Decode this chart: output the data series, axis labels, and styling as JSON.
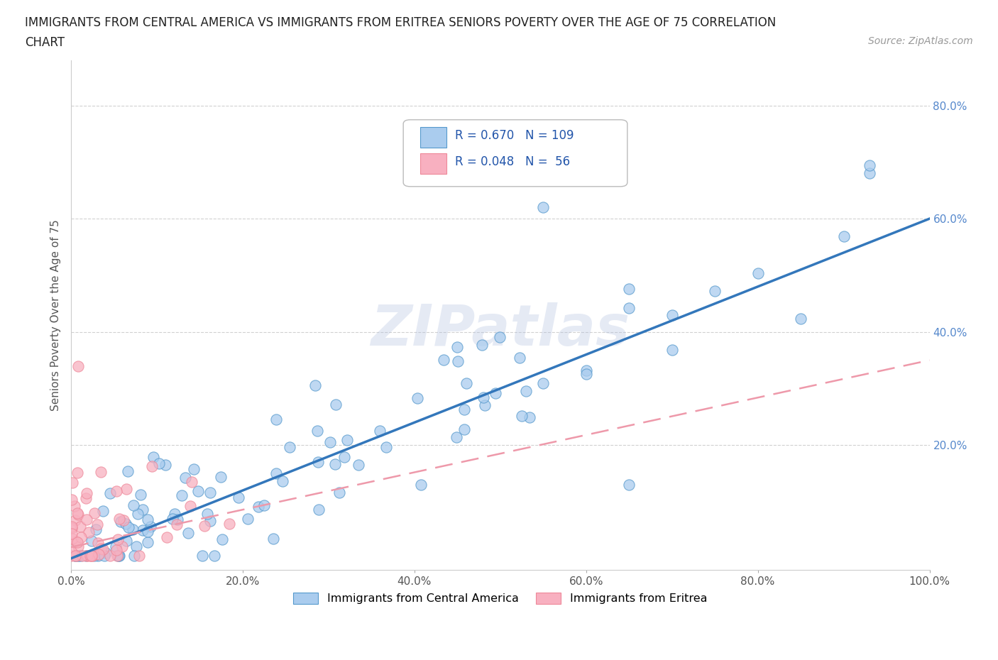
{
  "title_line1": "IMMIGRANTS FROM CENTRAL AMERICA VS IMMIGRANTS FROM ERITREA SENIORS POVERTY OVER THE AGE OF 75 CORRELATION",
  "title_line2": "CHART",
  "source": "Source: ZipAtlas.com",
  "ylabel": "Seniors Poverty Over the Age of 75",
  "xlim": [
    0,
    1.0
  ],
  "ylim": [
    -0.02,
    0.88
  ],
  "xtick_labels": [
    "0.0%",
    "20.0%",
    "40.0%",
    "60.0%",
    "80.0%",
    "100.0%"
  ],
  "xtick_vals": [
    0.0,
    0.2,
    0.4,
    0.6,
    0.8,
    1.0
  ],
  "ytick_labels": [
    "20.0%",
    "40.0%",
    "60.0%",
    "80.0%"
  ],
  "ytick_vals": [
    0.2,
    0.4,
    0.6,
    0.8
  ],
  "R_blue": 0.67,
  "N_blue": 109,
  "R_pink": 0.048,
  "N_pink": 56,
  "color_blue": "#aaccee",
  "color_pink": "#f8b0c0",
  "edge_blue": "#5599cc",
  "edge_pink": "#ee8899",
  "line_blue": "#3377bb",
  "line_pink": "#ee99aa",
  "background_color": "#ffffff",
  "grid_color": "#cccccc",
  "watermark": "ZIPatlas",
  "legend_label_blue": "Immigrants from Central America",
  "legend_label_pink": "Immigrants from Eritrea",
  "slope_blue": 0.6,
  "intercept_blue": 0.0,
  "slope_pink": 0.33,
  "intercept_pink": 0.02
}
